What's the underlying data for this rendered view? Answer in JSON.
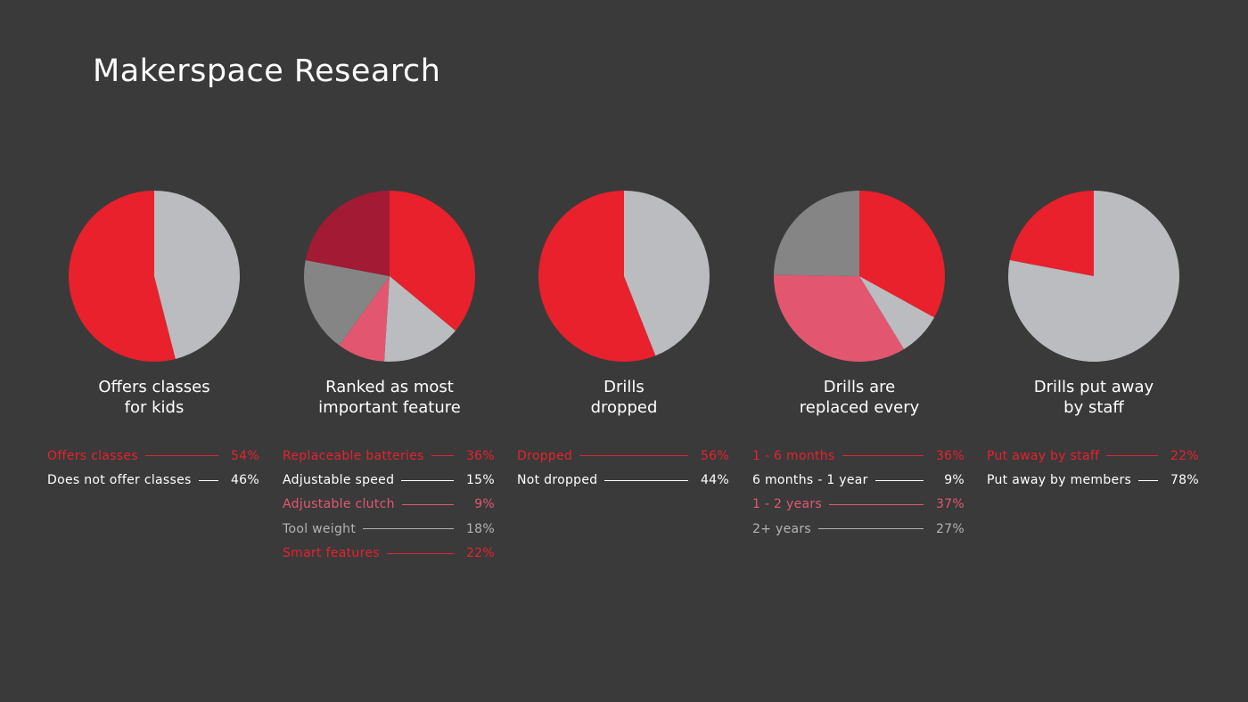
{
  "page": {
    "title": "Makerspace Research"
  },
  "colors": {
    "background": "#3a3a3b",
    "red": "#e8212c",
    "pink": "#e2576f",
    "crimson": "#a31a34",
    "light_gray": "#bbbcbf",
    "mid_gray": "#858585",
    "legend_white": "#ffffff",
    "legend_gray": "#b3b3b3"
  },
  "chart_data": [
    {
      "type": "pie",
      "title": "Offers classes for kids",
      "title_lines": [
        "Offers classes",
        "for kids"
      ],
      "labels": [
        "Offers classes",
        "Does not offer classes"
      ],
      "values": [
        54,
        46
      ],
      "value_labels": [
        "54%",
        "46%"
      ],
      "colors": [
        "#e8212c",
        "#bbbcbf"
      ],
      "legend_colors": [
        "#e8212c",
        "#ffffff"
      ],
      "start": "top",
      "direction": "counterclockwise"
    },
    {
      "type": "pie",
      "title": "Ranked as most important feature",
      "title_lines": [
        "Ranked as most",
        "important feature"
      ],
      "labels": [
        "Replaceable batteries",
        "Adjustable speed",
        "Adjustable clutch",
        "Tool weight",
        "Smart features"
      ],
      "values": [
        36,
        15,
        9,
        18,
        22
      ],
      "value_labels": [
        "36%",
        "15%",
        "9%",
        "18%",
        "22%"
      ],
      "colors": [
        "#e8212c",
        "#bbbcbf",
        "#e2576f",
        "#858585",
        "#a31a34"
      ],
      "legend_colors": [
        "#e8212c",
        "#ffffff",
        "#e2576f",
        "#b3b3b3",
        "#e8212c"
      ],
      "start": "top",
      "direction": "clockwise"
    },
    {
      "type": "pie",
      "title": "Drills dropped",
      "title_lines": [
        "Drills",
        "dropped"
      ],
      "labels": [
        "Dropped",
        "Not dropped"
      ],
      "values": [
        56,
        44
      ],
      "value_labels": [
        "56%",
        "44%"
      ],
      "colors": [
        "#e8212c",
        "#bbbcbf"
      ],
      "legend_colors": [
        "#e8212c",
        "#ffffff"
      ],
      "start": "top",
      "direction": "counterclockwise"
    },
    {
      "type": "pie",
      "title": "Drills are replaced every",
      "title_lines": [
        "Drills are",
        "replaced every"
      ],
      "labels": [
        "1 - 6 months",
        "6 months - 1 year",
        "1 - 2 years",
        "2+ years"
      ],
      "values": [
        36,
        9,
        37,
        27
      ],
      "value_labels": [
        "36%",
        "9%",
        "37%",
        "27%"
      ],
      "colors": [
        "#e8212c",
        "#bbbcbf",
        "#e2576f",
        "#858585"
      ],
      "legend_colors": [
        "#e8212c",
        "#ffffff",
        "#e2576f",
        "#b3b3b3"
      ],
      "start": "top",
      "direction": "clockwise"
    },
    {
      "type": "pie",
      "title": "Drills put away by staff",
      "title_lines": [
        "Drills put away",
        "by staff"
      ],
      "labels": [
        "Put away by staff",
        "Put away by members"
      ],
      "values": [
        22,
        78
      ],
      "value_labels": [
        "22%",
        "78%"
      ],
      "colors": [
        "#e8212c",
        "#bbbcbf"
      ],
      "legend_colors": [
        "#e8212c",
        "#ffffff"
      ],
      "start": "top",
      "direction": "counterclockwise"
    }
  ]
}
